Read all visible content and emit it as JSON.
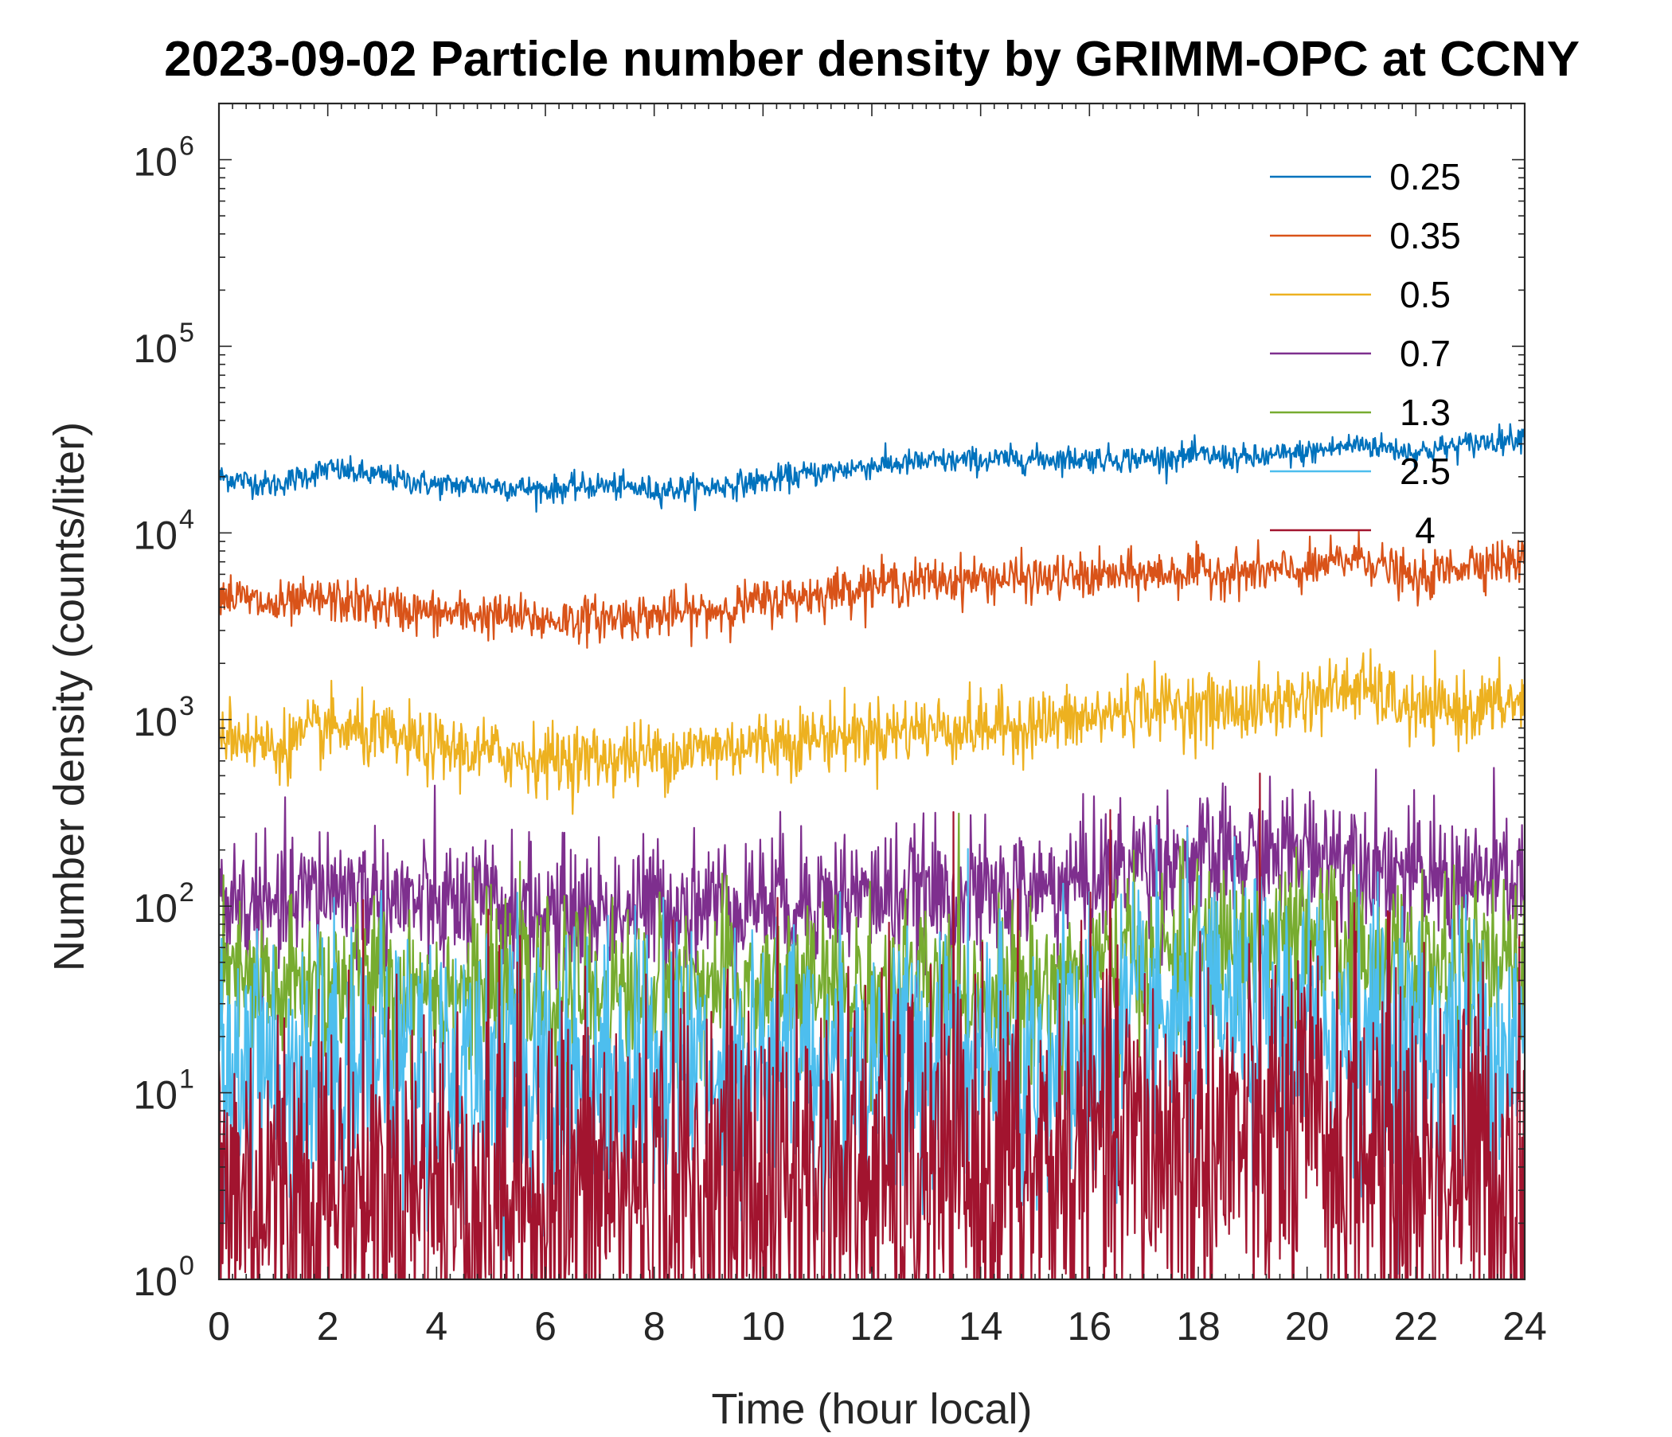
{
  "chart_data": {
    "type": "line",
    "title": "2023-09-02 Particle number density by GRIMM-OPC at CCNY",
    "xlabel": "Time (hour local)",
    "ylabel": "Number density (counts/liter)",
    "xlim": [
      0,
      24
    ],
    "ylim": [
      1,
      2000000
    ],
    "yscale": "log",
    "x_ticks": [
      0,
      2,
      4,
      6,
      8,
      10,
      12,
      14,
      16,
      18,
      20,
      22,
      24
    ],
    "y_ticks": [
      {
        "base": "10",
        "exp": "0",
        "value": 1
      },
      {
        "base": "10",
        "exp": "1",
        "value": 10
      },
      {
        "base": "10",
        "exp": "2",
        "value": 100
      },
      {
        "base": "10",
        "exp": "3",
        "value": 1000
      },
      {
        "base": "10",
        "exp": "4",
        "value": 10000
      },
      {
        "base": "10",
        "exp": "5",
        "value": 100000
      },
      {
        "base": "10",
        "exp": "6",
        "value": 1000000
      }
    ],
    "legend_position": "top-right",
    "x": [
      0,
      1,
      2,
      3,
      4,
      5,
      6,
      7,
      8,
      9,
      10,
      11,
      12,
      13,
      14,
      15,
      16,
      17,
      18,
      19,
      20,
      21,
      22,
      23,
      24
    ],
    "series": [
      {
        "name": "0.25",
        "color": "#0072BD",
        "noise": 0.035,
        "values": [
          20000,
          18000,
          22000,
          20000,
          18000,
          18000,
          17000,
          18000,
          17000,
          17500,
          19000,
          21000,
          23000,
          24000,
          24500,
          25000,
          25000,
          25000,
          26000,
          25000,
          27000,
          30000,
          27000,
          30000,
          33000
        ]
      },
      {
        "name": "0.35",
        "color": "#D95319",
        "noise": 0.06,
        "values": [
          4800,
          4000,
          4400,
          4000,
          3700,
          3600,
          3400,
          3500,
          3600,
          3800,
          4300,
          4700,
          5300,
          5500,
          5700,
          5700,
          5800,
          6000,
          6200,
          6100,
          6300,
          7500,
          5500,
          7000,
          7000
        ]
      },
      {
        "name": "0.5",
        "color": "#EDB120",
        "noise": 0.09,
        "values": [
          900,
          700,
          900,
          800,
          700,
          660,
          620,
          620,
          650,
          700,
          750,
          800,
          850,
          900,
          900,
          950,
          1000,
          1200,
          1150,
          1150,
          1300,
          1500,
          1100,
          1150,
          1250
        ]
      },
      {
        "name": "0.7",
        "color": "#7E2F8E",
        "noise": 0.18,
        "values": [
          110,
          90,
          130,
          110,
          100,
          100,
          90,
          95,
          100,
          105,
          110,
          110,
          115,
          115,
          110,
          120,
          140,
          180,
          170,
          180,
          200,
          190,
          140,
          140,
          140
        ]
      },
      {
        "name": "1.3",
        "color": "#77AC30",
        "noise": 0.22,
        "values": [
          40,
          35,
          40,
          38,
          36,
          35,
          34,
          35,
          36,
          37,
          36,
          36,
          37,
          37,
          35,
          35,
          45,
          55,
          58,
          62,
          65,
          60,
          45,
          45,
          45
        ]
      },
      {
        "name": "2.5",
        "color": "#4DBEEE",
        "noise": 0.38,
        "values": [
          15,
          13,
          15,
          15,
          14,
          14,
          13,
          14,
          14,
          14,
          14,
          15,
          15,
          15,
          14,
          14,
          18,
          22,
          23,
          24,
          25,
          23,
          18,
          18,
          18
        ]
      },
      {
        "name": "4",
        "color": "#A2142F",
        "noise": 0.55,
        "values": [
          3,
          3,
          3,
          3,
          3,
          3,
          3,
          3,
          3,
          3,
          3.5,
          3.5,
          3.5,
          3.5,
          3.5,
          3.5,
          5,
          5,
          5,
          5.5,
          5.5,
          5,
          4,
          4,
          4
        ]
      }
    ]
  }
}
